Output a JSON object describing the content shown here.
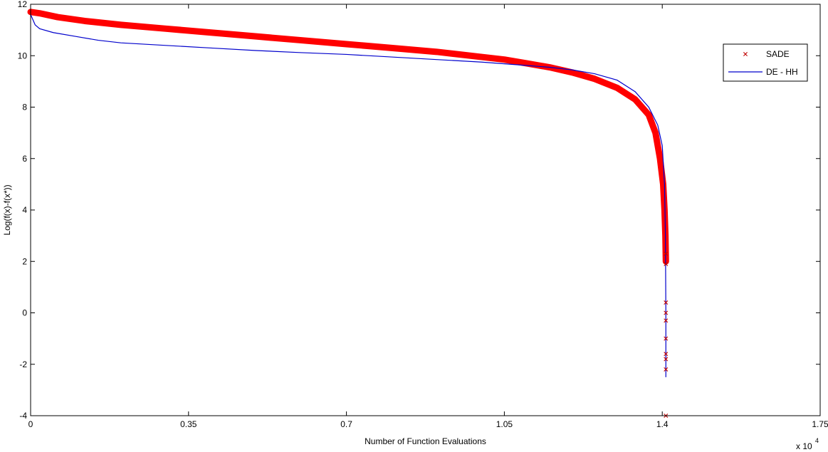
{
  "chart_data": {
    "type": "line",
    "xlabel": "Number of Function Evaluations",
    "ylabel": "Log(f(x)-f(x*))",
    "x_multiplier_label": "x 10",
    "x_multiplier_exponent": "4",
    "xlim": [
      0,
      1.75
    ],
    "ylim": [
      -4,
      12
    ],
    "xticks": [
      0,
      0.35,
      0.7,
      1.05,
      1.4,
      1.75
    ],
    "xtick_labels": [
      "0",
      "0.35",
      "0.7",
      "1.05",
      "1.4",
      "1.75"
    ],
    "yticks": [
      -4,
      -2,
      0,
      2,
      4,
      6,
      8,
      10,
      12
    ],
    "ytick_labels": [
      "-4",
      "-2",
      "0",
      "2",
      "4",
      "6",
      "8",
      "10",
      "12"
    ],
    "grid": false,
    "legend_position": "top-right",
    "series": [
      {
        "name": "SADE",
        "marker": "x",
        "color": "#ff0000",
        "marker_color": "#c00000",
        "x": [
          0,
          0.02,
          0.06,
          0.12,
          0.2,
          0.3,
          0.4,
          0.5,
          0.6,
          0.7,
          0.8,
          0.9,
          1.0,
          1.05,
          1.1,
          1.15,
          1.2,
          1.25,
          1.3,
          1.34,
          1.37,
          1.385,
          1.395,
          1.402,
          1.405,
          1.407,
          1.408
        ],
        "y": [
          11.7,
          11.65,
          11.5,
          11.35,
          11.2,
          11.05,
          10.9,
          10.75,
          10.6,
          10.45,
          10.3,
          10.15,
          9.95,
          9.85,
          9.7,
          9.55,
          9.35,
          9.1,
          8.75,
          8.3,
          7.7,
          7.0,
          6.0,
          5.0,
          4.0,
          3.0,
          2.0
        ],
        "scatter_x": [
          1.408,
          1.408,
          1.408,
          1.408,
          1.408,
          1.408,
          1.408,
          1.408,
          1.408,
          1.408
        ],
        "scatter_y": [
          1.9,
          2.3,
          0.4,
          0.0,
          -0.3,
          -1.0,
          -1.6,
          -1.8,
          -2.2,
          -4.0
        ]
      },
      {
        "name": "DE - HH",
        "marker": "none",
        "color": "#0000cc",
        "x": [
          0,
          0.005,
          0.01,
          0.02,
          0.05,
          0.1,
          0.15,
          0.2,
          0.3,
          0.4,
          0.5,
          0.6,
          0.7,
          0.8,
          0.9,
          1.0,
          1.1,
          1.15,
          1.2,
          1.25,
          1.3,
          1.34,
          1.37,
          1.39,
          1.4,
          1.405,
          1.407,
          1.408,
          1.408
        ],
        "y": [
          11.6,
          11.4,
          11.2,
          11.05,
          10.9,
          10.75,
          10.6,
          10.5,
          10.4,
          10.3,
          10.2,
          10.12,
          10.05,
          9.95,
          9.85,
          9.75,
          9.62,
          9.55,
          9.45,
          9.3,
          9.05,
          8.6,
          8.0,
          7.3,
          6.5,
          5.0,
          3.0,
          0.0,
          -2.5
        ]
      }
    ]
  }
}
